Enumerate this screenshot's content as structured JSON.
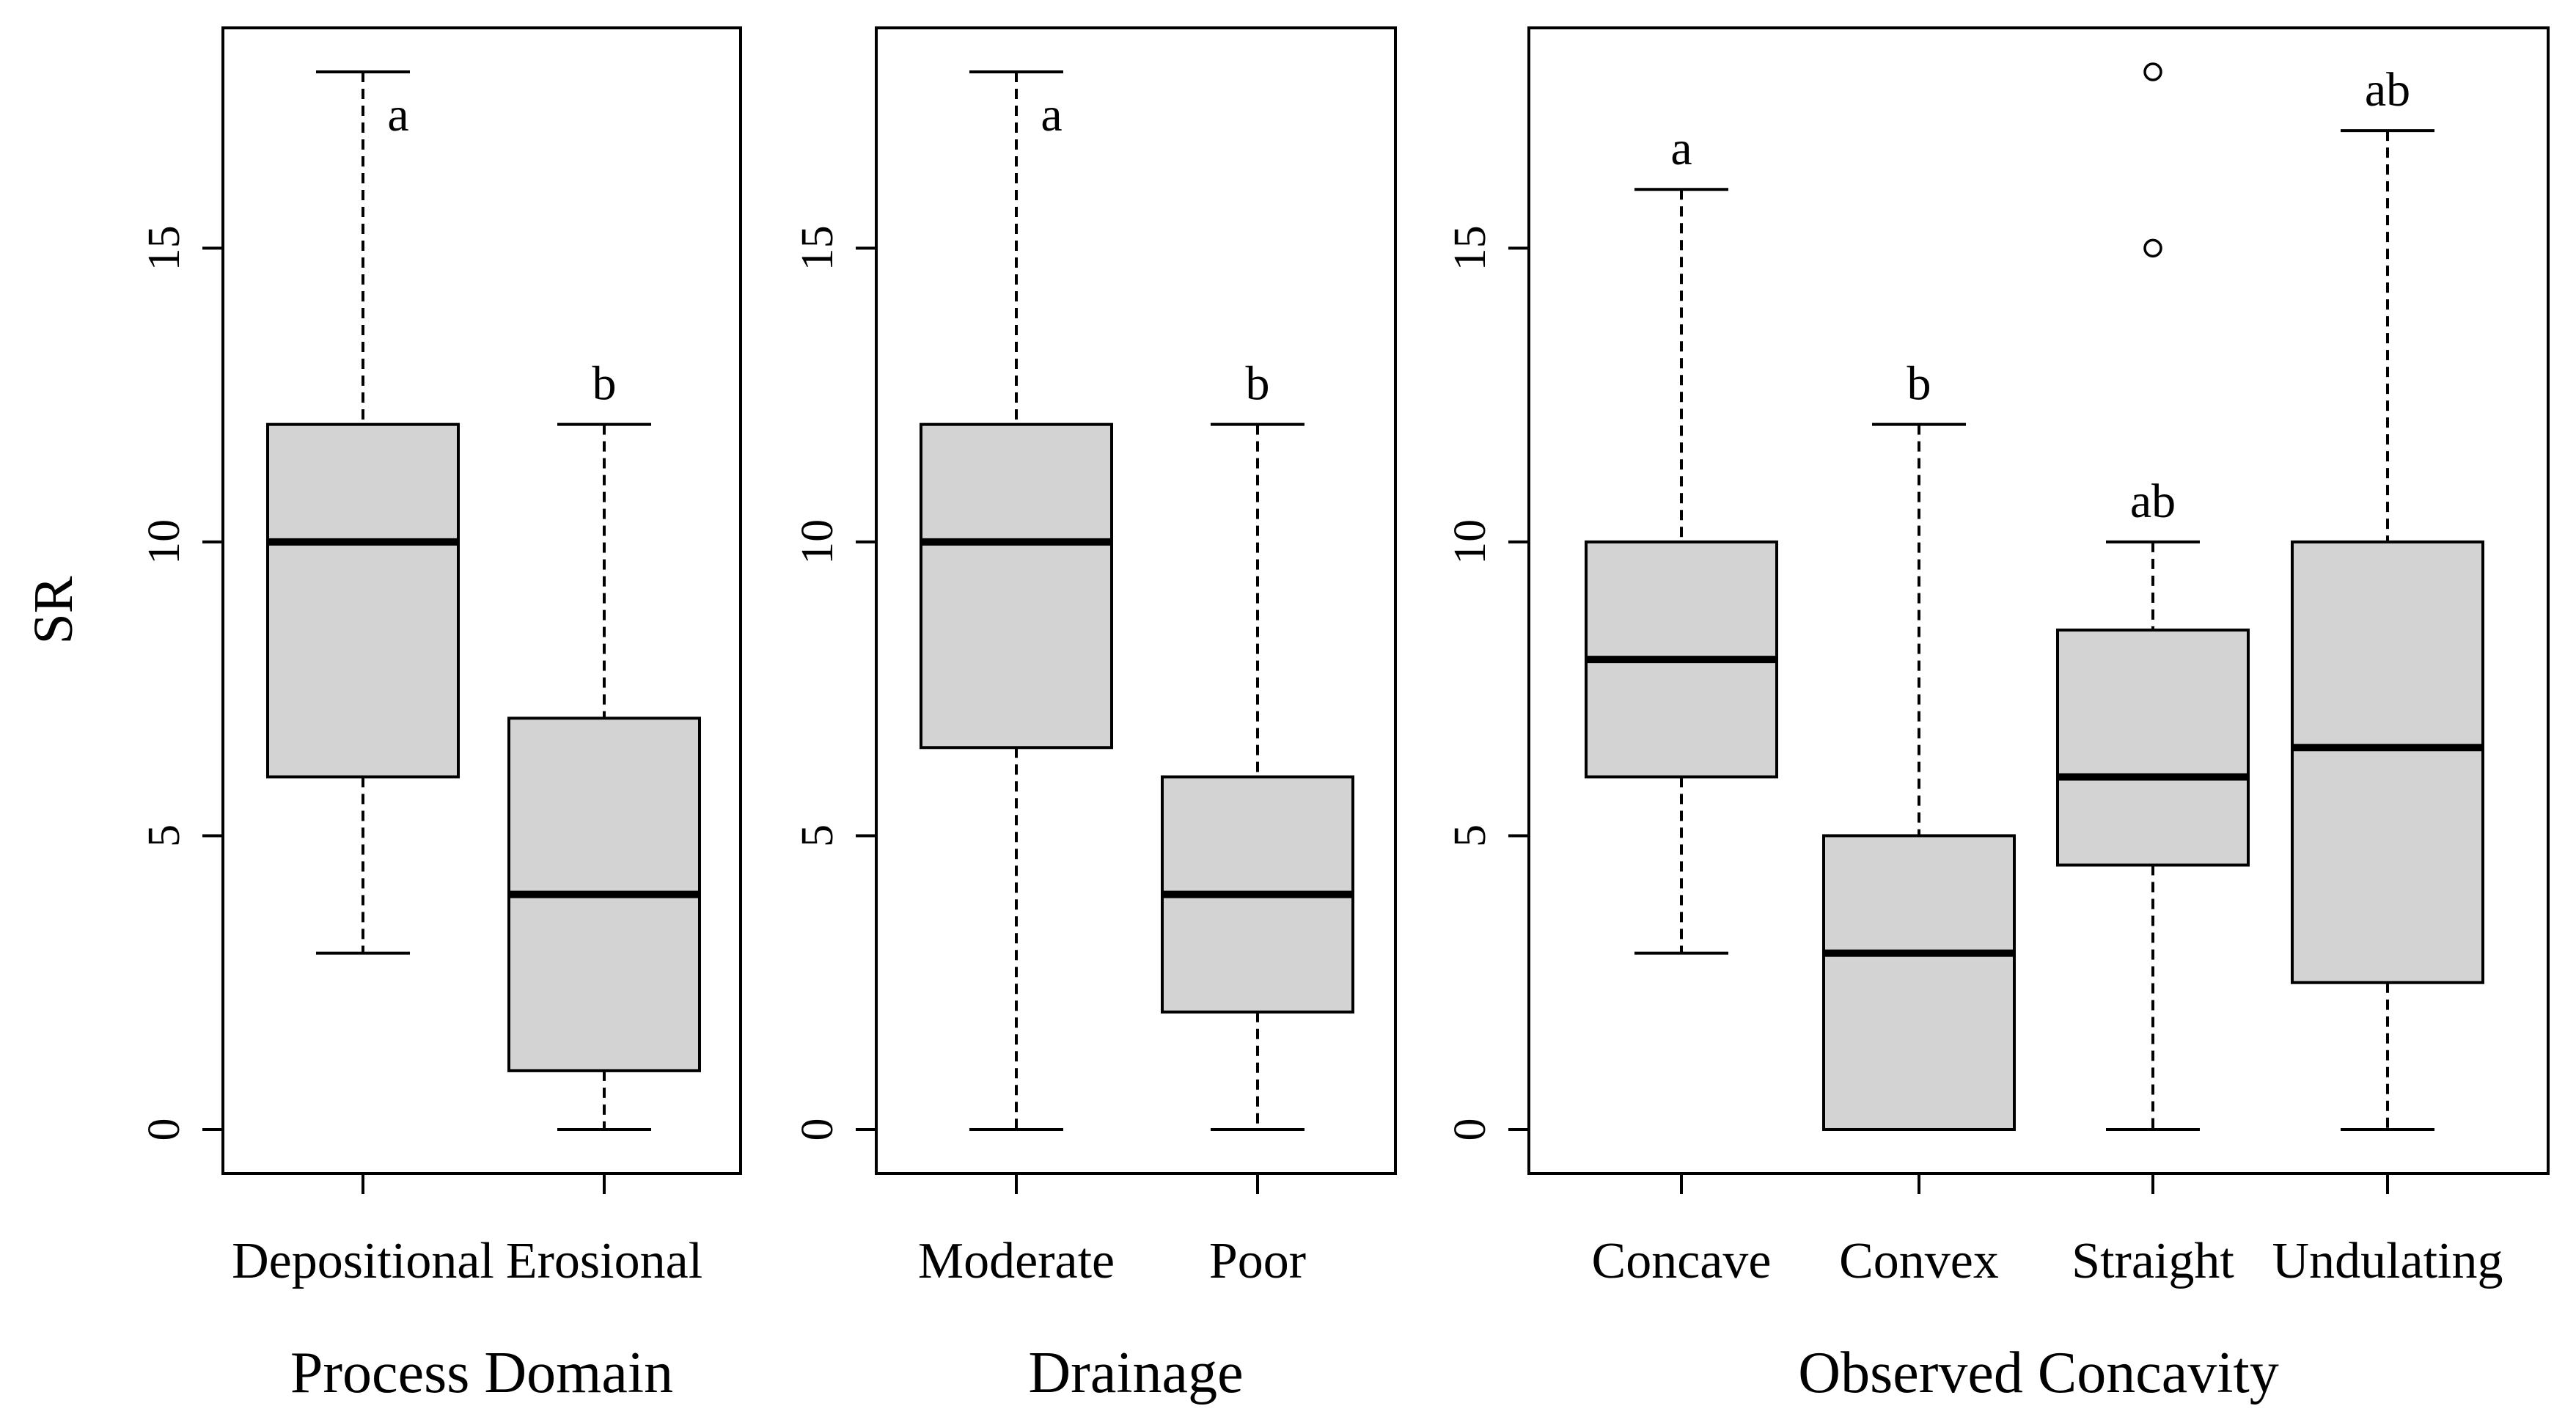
{
  "figure": {
    "y_axis_title": "SR",
    "colors": {
      "box_fill": "#d3d3d3",
      "stroke": "#000000",
      "background": "#ffffff"
    }
  },
  "chart_data": [
    {
      "type": "boxplot",
      "xlabel": "Process Domain",
      "ylabel": "SR",
      "ylim": [
        0,
        18
      ],
      "yticks": [
        0,
        5,
        10,
        15
      ],
      "categories": [
        "Depositional",
        "Erosional"
      ],
      "series": [
        {
          "name": "Depositional",
          "whisker_low": 3,
          "q1": 6,
          "median": 10,
          "q3": 12,
          "whisker_high": 18,
          "outliers": [],
          "letter": "a"
        },
        {
          "name": "Erosional",
          "whisker_low": 0,
          "q1": 1,
          "median": 4,
          "q3": 7,
          "whisker_high": 12,
          "outliers": [],
          "letter": "b"
        }
      ]
    },
    {
      "type": "boxplot",
      "xlabel": "Drainage",
      "ylabel": "SR",
      "ylim": [
        0,
        18
      ],
      "yticks": [
        0,
        5,
        10,
        15
      ],
      "categories": [
        "Moderate",
        "Poor"
      ],
      "series": [
        {
          "name": "Moderate",
          "whisker_low": 0,
          "q1": 6.5,
          "median": 10,
          "q3": 12,
          "whisker_high": 18,
          "outliers": [],
          "letter": "a"
        },
        {
          "name": "Poor",
          "whisker_low": 0,
          "q1": 2,
          "median": 4,
          "q3": 6,
          "whisker_high": 12,
          "outliers": [],
          "letter": "b"
        }
      ]
    },
    {
      "type": "boxplot",
      "xlabel": "Observed Concavity",
      "ylabel": "SR",
      "ylim": [
        0,
        18
      ],
      "yticks": [
        0,
        5,
        10,
        15
      ],
      "categories": [
        "Concave",
        "Convex",
        "Straight",
        "Undulating"
      ],
      "series": [
        {
          "name": "Concave",
          "whisker_low": 3,
          "q1": 6,
          "median": 8,
          "q3": 10,
          "whisker_high": 16,
          "outliers": [],
          "letter": "a"
        },
        {
          "name": "Convex",
          "whisker_low": 0,
          "q1": 0,
          "median": 3,
          "q3": 5,
          "whisker_high": 12,
          "outliers": [],
          "letter": "b"
        },
        {
          "name": "Straight",
          "whisker_low": 0,
          "q1": 4.5,
          "median": 6,
          "q3": 8.5,
          "whisker_high": 10,
          "outliers": [
            15,
            18
          ],
          "letter": "ab"
        },
        {
          "name": "Undulating",
          "whisker_low": 0,
          "q1": 2.5,
          "median": 6.5,
          "q3": 10,
          "whisker_high": 17,
          "outliers": [],
          "letter": "ab"
        }
      ]
    }
  ]
}
